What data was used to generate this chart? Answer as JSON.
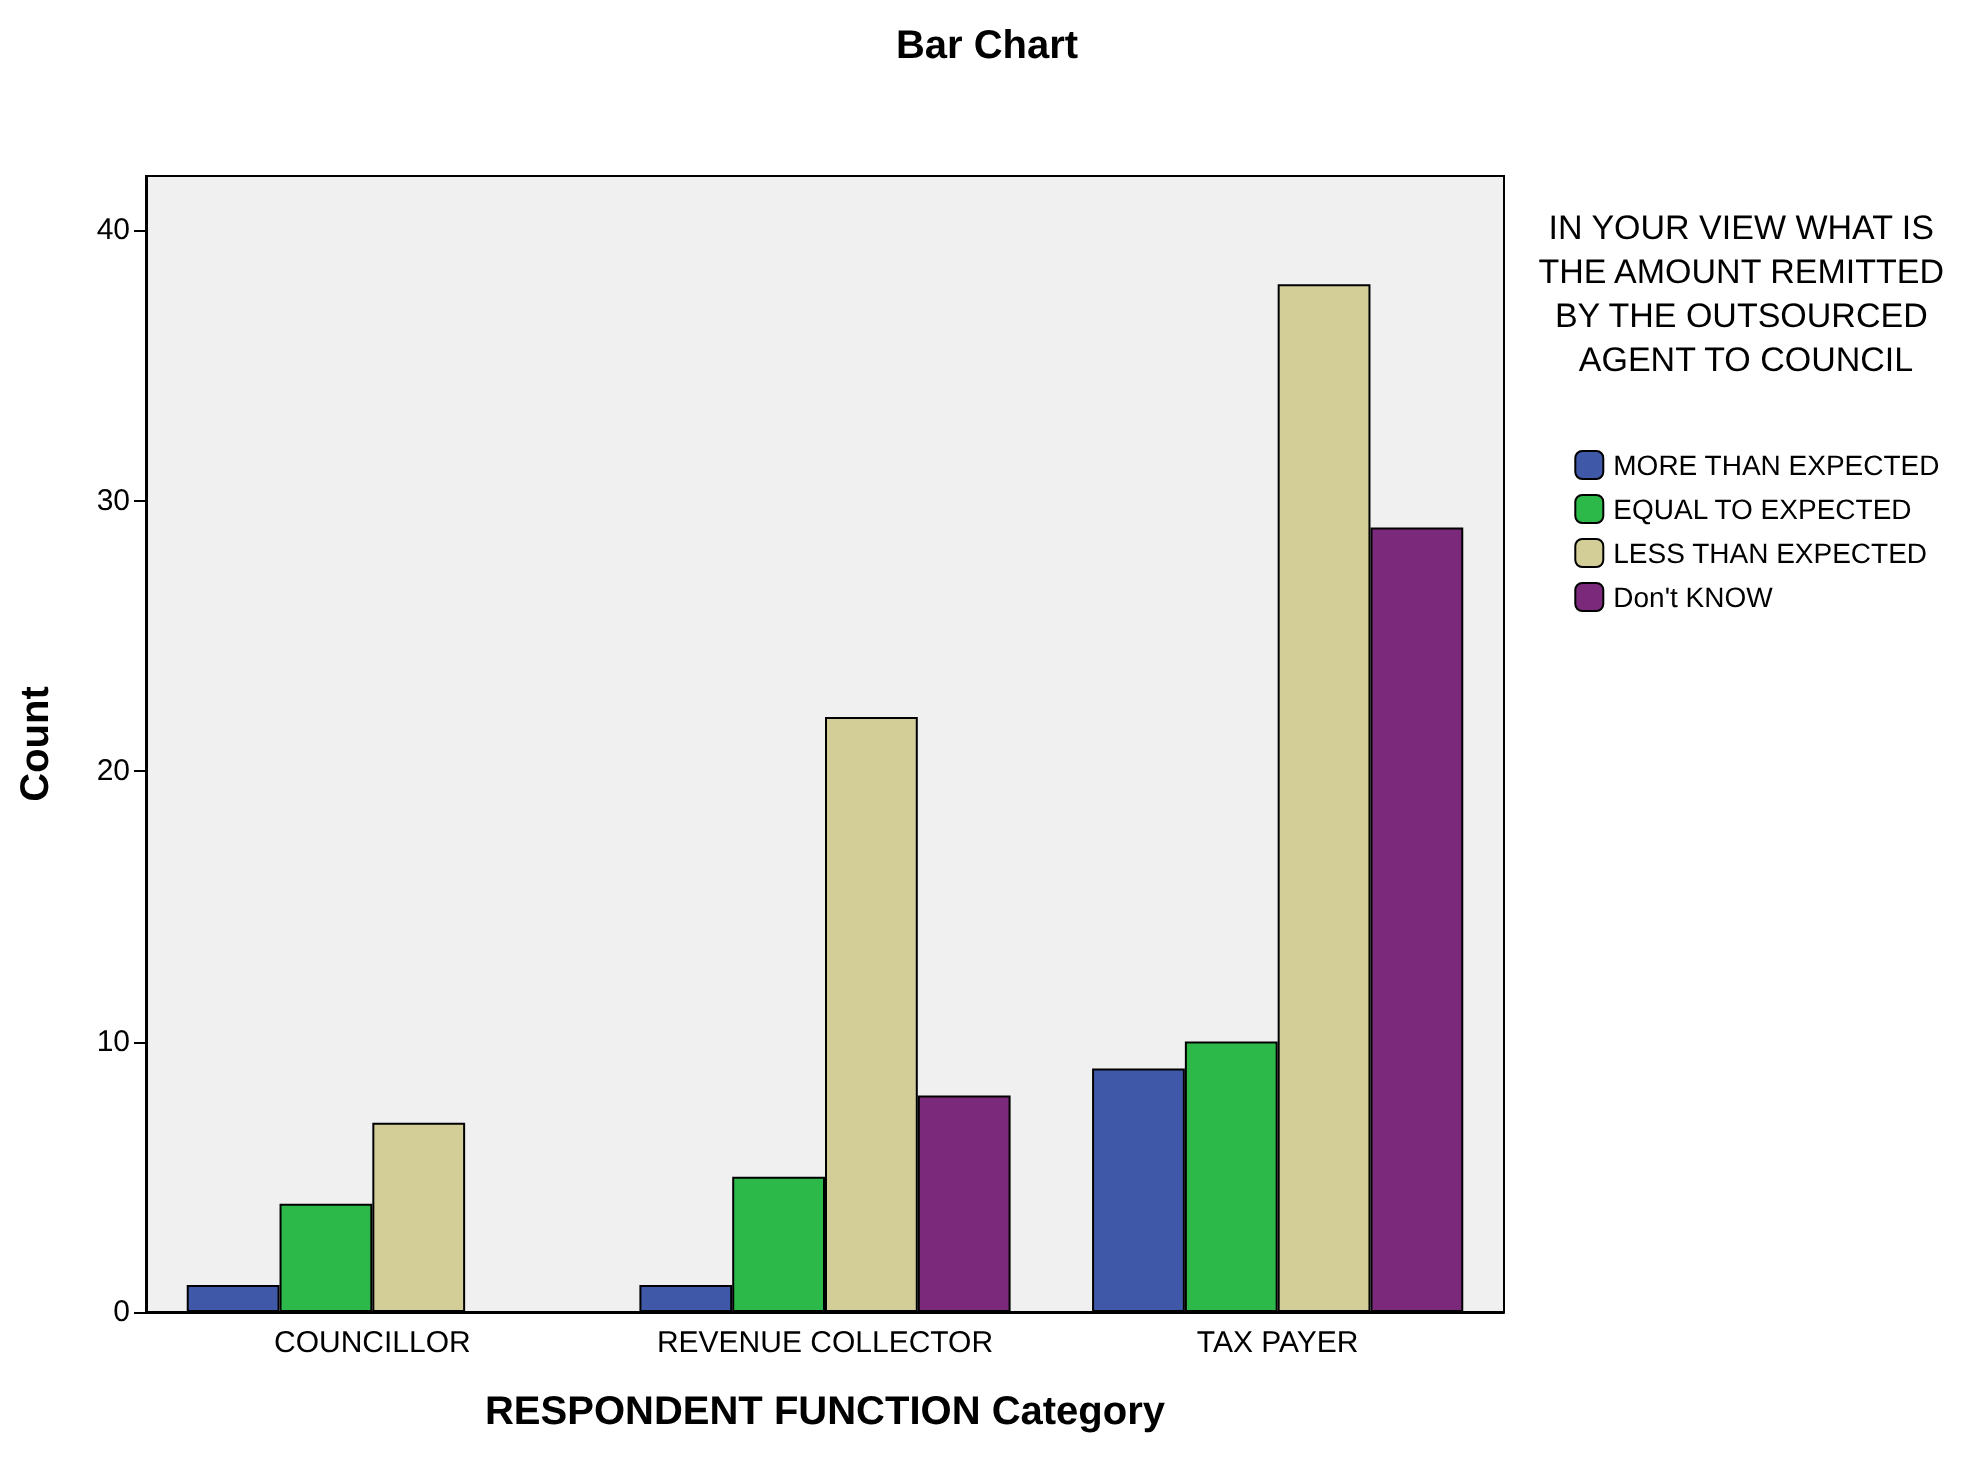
{
  "chart_data": {
    "type": "bar",
    "title": "Bar Chart",
    "xlabel": "RESPONDENT FUNCTION Category",
    "ylabel": "Count",
    "legend_title": "IN YOUR VIEW WHAT IS THE AMOUNT REMITTED BY THE OUTSOURCED AGENT TO COUNCIL",
    "categories": [
      "COUNCILLOR",
      "REVENUE COLLECTOR",
      "TAX PAYER"
    ],
    "series": [
      {
        "name": "MORE THAN EXPECTED",
        "color": "#3f58a8",
        "values": [
          1,
          1,
          9
        ]
      },
      {
        "name": "EQUAL TO EXPECTED",
        "color": "#2db84a",
        "values": [
          4,
          5,
          10
        ]
      },
      {
        "name": "LESS THAN EXPECTED",
        "color": "#d3ce98",
        "values": [
          7,
          22,
          38
        ]
      },
      {
        "name": "Don't KNOW",
        "color": "#7b2a7b",
        "values": [
          null,
          8,
          29
        ]
      }
    ],
    "ylim": [
      0,
      42
    ],
    "yticks": [
      0,
      10,
      20,
      30,
      40
    ],
    "legend": "right"
  }
}
